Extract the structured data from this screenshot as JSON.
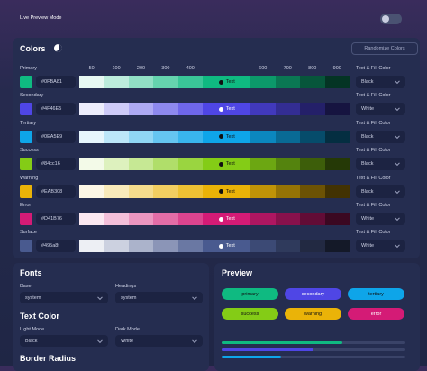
{
  "header": {
    "live_preview_label": "Live Preview Mode"
  },
  "colors": {
    "title": "Colors",
    "randomize_button": "Randomize Colors",
    "shade_headers": [
      50,
      100,
      200,
      300,
      400,
      600,
      700,
      800,
      900
    ],
    "rows": [
      {
        "name": "Primary",
        "hex": "#0FBA81",
        "sample": "Text",
        "text_fill_label": "Text & Fill Color",
        "text_color": "Black"
      },
      {
        "name": "Secondary",
        "hex": "#4F46E5",
        "sample": "Text",
        "text_fill_label": "Text & Fill Color",
        "text_color": "White"
      },
      {
        "name": "Tertiary",
        "hex": "#0EA5E9",
        "sample": "Text",
        "text_fill_label": "Text & Fill Color",
        "text_color": "Black"
      },
      {
        "name": "Success",
        "hex": "#84cc16",
        "sample": "Text",
        "text_fill_label": "Text & Fill Color",
        "text_color": "Black"
      },
      {
        "name": "Warning",
        "hex": "#EAB308",
        "sample": "Text",
        "text_fill_label": "Text & Fill Color",
        "text_color": "Black"
      },
      {
        "name": "Error",
        "hex": "#D41B76",
        "sample": "Text",
        "text_fill_label": "Text & Fill Color",
        "text_color": "White"
      },
      {
        "name": "Surface",
        "hex": "#495a8f",
        "sample": "Text",
        "text_fill_label": "Text & Fill Color",
        "text_color": "White"
      }
    ]
  },
  "fonts": {
    "title": "Fonts",
    "base_label": "Base",
    "base_value": "system",
    "headings_label": "Headings",
    "headings_value": "system"
  },
  "text_color": {
    "title": "Text Color",
    "light_label": "Light Mode",
    "light_value": "Black",
    "dark_label": "Dark Mode",
    "dark_value": "White"
  },
  "border_radius": {
    "title": "Border Radius"
  },
  "preview": {
    "title": "Preview",
    "pills": [
      "primary",
      "secondary",
      "tertiary",
      "success",
      "warning",
      "error"
    ]
  }
}
